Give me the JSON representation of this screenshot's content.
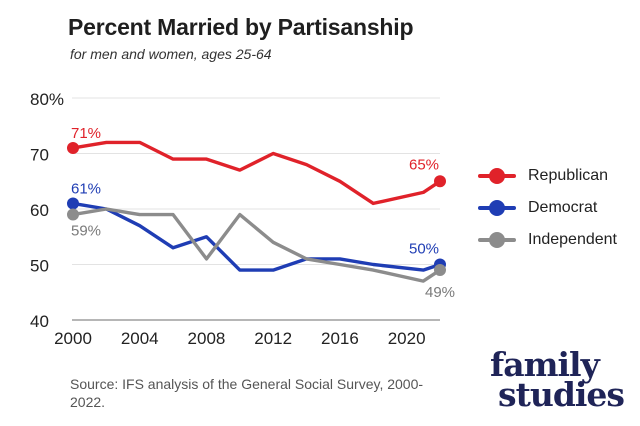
{
  "title": "Percent Married by Partisanship",
  "subtitle": "for men and women, ages 25-64",
  "source": "Source: IFS analysis of the General Social Survey, 2000-2022.",
  "logo": {
    "line1": "family",
    "line2": "studies"
  },
  "legend": [
    {
      "label": "Republican",
      "color": "#e0222a"
    },
    {
      "label": "Democrat",
      "color": "#1f3db4"
    },
    {
      "label": "Independent",
      "color": "#8c8c8c"
    }
  ],
  "chart_data": {
    "type": "line",
    "title": "Percent Married by Partisanship",
    "subtitle": "for men and women, ages 25-64",
    "xlabel": "",
    "ylabel": "",
    "xlim": [
      2000,
      2022
    ],
    "ylim": [
      40,
      80
    ],
    "x_ticks": [
      "2000",
      "2004",
      "2008",
      "2012",
      "2016",
      "2020"
    ],
    "x_tick_values": [
      2000,
      2004,
      2008,
      2012,
      2016,
      2020
    ],
    "y_ticks": [
      "40",
      "50",
      "60",
      "70",
      "80%"
    ],
    "y_tick_values": [
      40,
      50,
      60,
      70,
      80
    ],
    "grid": "horizontal",
    "legend_position": "right",
    "x": [
      2000,
      2002,
      2004,
      2006,
      2008,
      2010,
      2012,
      2014,
      2016,
      2018,
      2021,
      2022
    ],
    "series": [
      {
        "name": "Republican",
        "color": "#e0222a",
        "values": [
          71,
          72,
          72,
          69,
          69,
          67,
          70,
          68,
          65,
          61,
          63,
          65
        ],
        "start_label": "71%",
        "end_label": "65%"
      },
      {
        "name": "Democrat",
        "color": "#1f3db4",
        "values": [
          61,
          60,
          57,
          53,
          55,
          49,
          49,
          51,
          51,
          50,
          49,
          50
        ],
        "start_label": "61%",
        "end_label": "50%"
      },
      {
        "name": "Independent",
        "color": "#8c8c8c",
        "values": [
          59,
          60,
          59,
          59,
          51,
          59,
          54,
          51,
          50,
          49,
          47,
          49
        ],
        "start_label": "59%",
        "end_label": "49%"
      }
    ]
  }
}
